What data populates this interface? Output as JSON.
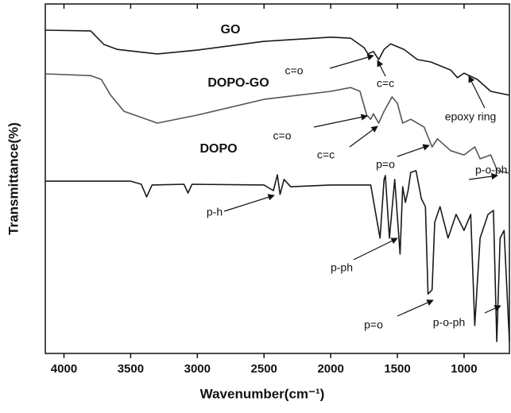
{
  "chart_data": {
    "type": "line",
    "xlabel": "Wavenumber(cm⁻¹)",
    "ylabel": "Transmittance(%)",
    "xlim": [
      4140,
      660
    ],
    "ylim": [
      0,
      100
    ],
    "xticks": [
      4000,
      3500,
      3000,
      2500,
      2000,
      1500,
      1000
    ],
    "series": [
      {
        "name": "GO",
        "color": "#1a1a1a",
        "x": [
          4140,
          3800,
          3700,
          3600,
          3300,
          3000,
          2500,
          2000,
          1850,
          1750,
          1720,
          1680,
          1640,
          1600,
          1550,
          1450,
          1350,
          1250,
          1100,
          1050,
          1000,
          900,
          800,
          660
        ],
        "values": [
          92.5,
          92.3,
          88.4,
          87,
          85.7,
          86.8,
          89.3,
          90.5,
          90.2,
          87.5,
          85.7,
          86.4,
          84.1,
          87,
          88.6,
          87,
          84.1,
          83.4,
          81.1,
          78.9,
          80.2,
          78.4,
          75,
          73.9
        ]
      },
      {
        "name": "DOPO-GO",
        "color": "#555555",
        "x": [
          4140,
          3800,
          3720,
          3650,
          3550,
          3300,
          3000,
          2500,
          2000,
          1850,
          1780,
          1730,
          1700,
          1680,
          1640,
          1600,
          1540,
          1500,
          1460,
          1400,
          1300,
          1240,
          1200,
          1100,
          1000,
          920,
          880,
          800,
          750,
          660
        ],
        "values": [
          80,
          79.5,
          78.4,
          73.9,
          69.3,
          65.9,
          68.2,
          72.7,
          75,
          76.1,
          75,
          68.2,
          67,
          68.6,
          65.9,
          69.3,
          73.4,
          71.6,
          65.9,
          67,
          64.8,
          59.1,
          61.4,
          58,
          56.8,
          59.1,
          55.7,
          56.8,
          52.3,
          51.6
        ]
      },
      {
        "name": "DOPO",
        "color": "#1a1a1a",
        "x": [
          4140,
          3500,
          3420,
          3380,
          3340,
          3100,
          3070,
          3040,
          2500,
          2430,
          2400,
          2380,
          2350,
          2300,
          2000,
          1700,
          1630,
          1600,
          1590,
          1560,
          1520,
          1480,
          1460,
          1440,
          1420,
          1400,
          1360,
          1320,
          1290,
          1270,
          1240,
          1220,
          1180,
          1120,
          1060,
          1000,
          950,
          920,
          880,
          820,
          780,
          755,
          730,
          700,
          660
        ],
        "values": [
          49.3,
          49.3,
          48.4,
          44.8,
          48.2,
          48.4,
          45.9,
          48.4,
          48.2,
          46.6,
          51.1,
          45.5,
          49.8,
          47.7,
          48.2,
          48.2,
          33,
          49.8,
          50.9,
          33,
          49.8,
          28.4,
          47.7,
          43.2,
          46.6,
          51.8,
          52.3,
          44.3,
          42,
          17,
          18.2,
          37.5,
          42,
          33,
          39.8,
          35.2,
          39.8,
          8,
          33,
          39.8,
          40.9,
          3.4,
          33,
          35.2,
          3.4
        ]
      }
    ],
    "annotations": [
      "c=o",
      "c=c",
      "epoxy ring",
      "c=o",
      "c=c",
      "p=o",
      "p-o-ph",
      "p-h",
      "p-ph",
      "p=o",
      "p-o-ph"
    ]
  }
}
